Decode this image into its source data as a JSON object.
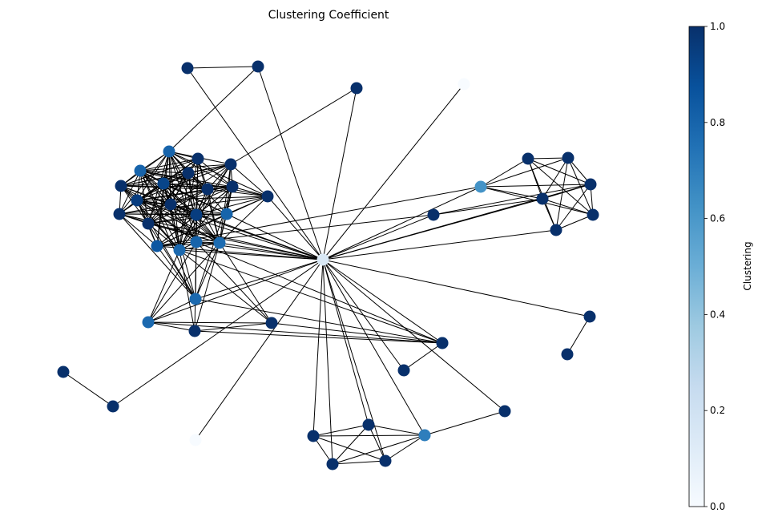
{
  "title": "Clustering Coefficient",
  "colorbar": {
    "label": "Clustering",
    "range": [
      0.0,
      1.0
    ],
    "ticks": [
      "0.0",
      "0.2",
      "0.4",
      "0.6",
      "0.8",
      "1.0"
    ],
    "tick_values": [
      0.0,
      0.2,
      0.4,
      0.6,
      0.8,
      1.0
    ],
    "colormap": "Blues",
    "colormap_stops": [
      "#f7fbff",
      "#deebf7",
      "#c6dbef",
      "#9ecae1",
      "#6baed6",
      "#4292c6",
      "#2171b5",
      "#08519c",
      "#08306b"
    ]
  },
  "edge_color": "#000000",
  "nodes": [
    {
      "id": "hub",
      "clustering": 0.15
    },
    {
      "id": "t1",
      "clustering": 1.0
    },
    {
      "id": "t2",
      "clustering": 1.0
    },
    {
      "id": "l1",
      "clustering": 1.0
    },
    {
      "id": "l2",
      "clustering": 0.0
    },
    {
      "id": "c1",
      "clustering": 0.8
    },
    {
      "id": "c2",
      "clustering": 1.0
    },
    {
      "id": "c3",
      "clustering": 0.8
    },
    {
      "id": "c4",
      "clustering": 1.0
    },
    {
      "id": "c5",
      "clustering": 1.0
    },
    {
      "id": "c6",
      "clustering": 0.92
    },
    {
      "id": "c7",
      "clustering": 1.0
    },
    {
      "id": "c8",
      "clustering": 1.0
    },
    {
      "id": "c9",
      "clustering": 1.0
    },
    {
      "id": "c10",
      "clustering": 1.0
    },
    {
      "id": "c11",
      "clustering": 0.95
    },
    {
      "id": "c12",
      "clustering": 1.0
    },
    {
      "id": "c13",
      "clustering": 1.0
    },
    {
      "id": "c14",
      "clustering": 0.95
    },
    {
      "id": "c15",
      "clustering": 0.8
    },
    {
      "id": "c16",
      "clustering": 1.0
    },
    {
      "id": "c17",
      "clustering": 0.85
    },
    {
      "id": "c18",
      "clustering": 0.78
    },
    {
      "id": "c19",
      "clustering": 0.8
    },
    {
      "id": "c20",
      "clustering": 0.77
    },
    {
      "id": "c21",
      "clustering": 0.78
    },
    {
      "id": "s1",
      "clustering": 0.78
    },
    {
      "id": "s2",
      "clustering": 1.0
    },
    {
      "id": "s3",
      "clustering": 1.0
    },
    {
      "id": "s4",
      "clustering": 0.68
    },
    {
      "id": "r1",
      "clustering": 0.62
    },
    {
      "id": "r2",
      "clustering": 1.0
    },
    {
      "id": "r3",
      "clustering": 1.0
    },
    {
      "id": "r4",
      "clustering": 1.0
    },
    {
      "id": "r5",
      "clustering": 1.0
    },
    {
      "id": "r6",
      "clustering": 1.0
    },
    {
      "id": "r7",
      "clustering": 1.0
    },
    {
      "id": "r8",
      "clustering": 1.0
    },
    {
      "id": "p1",
      "clustering": 1.0
    },
    {
      "id": "p2",
      "clustering": 1.0
    },
    {
      "id": "q1",
      "clustering": 1.0
    },
    {
      "id": "q2",
      "clustering": 1.0
    },
    {
      "id": "w1",
      "clustering": 1.0
    },
    {
      "id": "w2",
      "clustering": 1.0
    },
    {
      "id": "z1",
      "clustering": 0.0
    },
    {
      "id": "b1",
      "clustering": 1.0
    },
    {
      "id": "b2",
      "clustering": 1.0
    },
    {
      "id": "b3",
      "clustering": 1.0
    },
    {
      "id": "b4",
      "clustering": 1.0
    },
    {
      "id": "b5",
      "clustering": 0.7
    },
    {
      "id": "b6",
      "clustering": 1.0
    }
  ],
  "edges": [
    [
      "t1",
      "t2"
    ],
    [
      "t1",
      "hub"
    ],
    [
      "t2",
      "hub"
    ],
    [
      "t2",
      "c1"
    ],
    [
      "l1",
      "hub"
    ],
    [
      "l1",
      "c5"
    ],
    [
      "l2",
      "hub"
    ],
    [
      "c1",
      "c2"
    ],
    [
      "c1",
      "c3"
    ],
    [
      "c1",
      "c4"
    ],
    [
      "c1",
      "c5"
    ],
    [
      "c1",
      "c6"
    ],
    [
      "c1",
      "c7"
    ],
    [
      "c1",
      "c8"
    ],
    [
      "c1",
      "c9"
    ],
    [
      "c1",
      "c10"
    ],
    [
      "c1",
      "c11"
    ],
    [
      "c1",
      "c12"
    ],
    [
      "c1",
      "c13"
    ],
    [
      "c1",
      "c14"
    ],
    [
      "c1",
      "c15"
    ],
    [
      "c1",
      "c16"
    ],
    [
      "c1",
      "c17"
    ],
    [
      "c1",
      "c18"
    ],
    [
      "c1",
      "c19"
    ],
    [
      "c1",
      "c20"
    ],
    [
      "c2",
      "c3"
    ],
    [
      "c2",
      "c6"
    ],
    [
      "c2",
      "c7"
    ],
    [
      "c2",
      "c8"
    ],
    [
      "c2",
      "c9"
    ],
    [
      "c2",
      "c11"
    ],
    [
      "c2",
      "c12"
    ],
    [
      "c2",
      "c14"
    ],
    [
      "c2",
      "c16"
    ],
    [
      "c2",
      "c18"
    ],
    [
      "c2",
      "c19"
    ],
    [
      "c2",
      "c20"
    ],
    [
      "c3",
      "c4"
    ],
    [
      "c3",
      "c5"
    ],
    [
      "c3",
      "c6"
    ],
    [
      "c3",
      "c7"
    ],
    [
      "c3",
      "c8"
    ],
    [
      "c3",
      "c9"
    ],
    [
      "c3",
      "c10"
    ],
    [
      "c3",
      "c11"
    ],
    [
      "c3",
      "c12"
    ],
    [
      "c3",
      "c13"
    ],
    [
      "c3",
      "c14"
    ],
    [
      "c3",
      "c15"
    ],
    [
      "c3",
      "c16"
    ],
    [
      "c3",
      "c18"
    ],
    [
      "c3",
      "c19"
    ],
    [
      "c3",
      "c20"
    ],
    [
      "c3",
      "c21"
    ],
    [
      "c4",
      "c5"
    ],
    [
      "c4",
      "c6"
    ],
    [
      "c4",
      "c7"
    ],
    [
      "c4",
      "c8"
    ],
    [
      "c4",
      "c11"
    ],
    [
      "c4",
      "c12"
    ],
    [
      "c4",
      "c14"
    ],
    [
      "c4",
      "c16"
    ],
    [
      "c4",
      "c18"
    ],
    [
      "c4",
      "c19"
    ],
    [
      "c5",
      "c6"
    ],
    [
      "c5",
      "c7"
    ],
    [
      "c5",
      "c8"
    ],
    [
      "c5",
      "c9"
    ],
    [
      "c5",
      "c10"
    ],
    [
      "c5",
      "c11"
    ],
    [
      "c5",
      "c12"
    ],
    [
      "c5",
      "c14"
    ],
    [
      "c5",
      "c15"
    ],
    [
      "c5",
      "c18"
    ],
    [
      "c5",
      "c20"
    ],
    [
      "c6",
      "c7"
    ],
    [
      "c6",
      "c8"
    ],
    [
      "c6",
      "c9"
    ],
    [
      "c6",
      "c10"
    ],
    [
      "c6",
      "c11"
    ],
    [
      "c6",
      "c12"
    ],
    [
      "c6",
      "c13"
    ],
    [
      "c6",
      "c14"
    ],
    [
      "c6",
      "c15"
    ],
    [
      "c6",
      "c16"
    ],
    [
      "c6",
      "c17"
    ],
    [
      "c6",
      "c18"
    ],
    [
      "c6",
      "c19"
    ],
    [
      "c6",
      "c20"
    ],
    [
      "c6",
      "c21"
    ],
    [
      "c7",
      "c8"
    ],
    [
      "c7",
      "c9"
    ],
    [
      "c7",
      "c11"
    ],
    [
      "c7",
      "c12"
    ],
    [
      "c7",
      "c13"
    ],
    [
      "c7",
      "c14"
    ],
    [
      "c7",
      "c16"
    ],
    [
      "c7",
      "c18"
    ],
    [
      "c7",
      "c19"
    ],
    [
      "c7",
      "c20"
    ],
    [
      "c8",
      "c9"
    ],
    [
      "c8",
      "c11"
    ],
    [
      "c8",
      "c12"
    ],
    [
      "c8",
      "c14"
    ],
    [
      "c8",
      "c16"
    ],
    [
      "c8",
      "c18"
    ],
    [
      "c8",
      "c19"
    ],
    [
      "c8",
      "c20"
    ],
    [
      "c9",
      "c10"
    ],
    [
      "c9",
      "c11"
    ],
    [
      "c9",
      "c12"
    ],
    [
      "c9",
      "c14"
    ],
    [
      "c9",
      "c15"
    ],
    [
      "c9",
      "c16"
    ],
    [
      "c9",
      "c17"
    ],
    [
      "c9",
      "c18"
    ],
    [
      "c9",
      "c20"
    ],
    [
      "c9",
      "c21"
    ],
    [
      "c10",
      "c11"
    ],
    [
      "c10",
      "c13"
    ],
    [
      "c10",
      "c14"
    ],
    [
      "c10",
      "c15"
    ],
    [
      "c10",
      "c17"
    ],
    [
      "c10",
      "c20"
    ],
    [
      "c11",
      "c12"
    ],
    [
      "c11",
      "c13"
    ],
    [
      "c11",
      "c14"
    ],
    [
      "c11",
      "c15"
    ],
    [
      "c11",
      "c16"
    ],
    [
      "c11",
      "c17"
    ],
    [
      "c11",
      "c18"
    ],
    [
      "c11",
      "c19"
    ],
    [
      "c11",
      "c20"
    ],
    [
      "c11",
      "c21"
    ],
    [
      "c12",
      "c13"
    ],
    [
      "c12",
      "c14"
    ],
    [
      "c12",
      "c16"
    ],
    [
      "c12",
      "c18"
    ],
    [
      "c12",
      "c19"
    ],
    [
      "c12",
      "c20"
    ],
    [
      "c13",
      "c14"
    ],
    [
      "c13",
      "c15"
    ],
    [
      "c13",
      "c16"
    ],
    [
      "c13",
      "c17"
    ],
    [
      "c13",
      "c20"
    ],
    [
      "c13",
      "c21"
    ],
    [
      "c14",
      "c15"
    ],
    [
      "c14",
      "c16"
    ],
    [
      "c14",
      "c17"
    ],
    [
      "c14",
      "c18"
    ],
    [
      "c14",
      "c19"
    ],
    [
      "c14",
      "c20"
    ],
    [
      "c14",
      "c21"
    ],
    [
      "c15",
      "c16"
    ],
    [
      "c15",
      "c17"
    ],
    [
      "c15",
      "c20"
    ],
    [
      "c16",
      "c17"
    ],
    [
      "c16",
      "c18"
    ],
    [
      "c16",
      "c20"
    ],
    [
      "c16",
      "c21"
    ],
    [
      "c17",
      "c20"
    ],
    [
      "c17",
      "c21"
    ],
    [
      "c18",
      "c19"
    ],
    [
      "c18",
      "c20"
    ],
    [
      "c19",
      "c20"
    ],
    [
      "c19",
      "c21"
    ],
    [
      "c20",
      "c21"
    ],
    [
      "c7",
      "hub"
    ],
    [
      "c13",
      "hub"
    ],
    [
      "c11",
      "hub"
    ],
    [
      "c14",
      "hub"
    ],
    [
      "c15",
      "hub"
    ],
    [
      "c16",
      "hub"
    ],
    [
      "c17",
      "hub"
    ],
    [
      "c18",
      "hub"
    ],
    [
      "c19",
      "hub"
    ],
    [
      "c20",
      "hub"
    ],
    [
      "c21",
      "hub"
    ],
    [
      "c10",
      "hub"
    ],
    [
      "c17",
      "r1"
    ],
    [
      "c17",
      "r2"
    ],
    [
      "s1",
      "c18"
    ],
    [
      "s1",
      "c19"
    ],
    [
      "s1",
      "c20"
    ],
    [
      "s1",
      "c21"
    ],
    [
      "s1",
      "s2"
    ],
    [
      "s1",
      "s3"
    ],
    [
      "s1",
      "s4"
    ],
    [
      "s1",
      "hub"
    ],
    [
      "s2",
      "c18"
    ],
    [
      "s2",
      "c19"
    ],
    [
      "s2",
      "c20"
    ],
    [
      "s2",
      "s3"
    ],
    [
      "s2",
      "s4"
    ],
    [
      "s3",
      "c18"
    ],
    [
      "s3",
      "c19"
    ],
    [
      "s3",
      "c20"
    ],
    [
      "s3",
      "s4"
    ],
    [
      "s4",
      "c18"
    ],
    [
      "s4",
      "c19"
    ],
    [
      "s4",
      "c21"
    ],
    [
      "s4",
      "q1"
    ],
    [
      "s4",
      "hub"
    ],
    [
      "q1",
      "q2"
    ],
    [
      "q2",
      "hub"
    ],
    [
      "r1",
      "r3"
    ],
    [
      "r1",
      "r4"
    ],
    [
      "r1",
      "r5"
    ],
    [
      "r1",
      "r6"
    ],
    [
      "r1",
      "r7"
    ],
    [
      "r1",
      "hub"
    ],
    [
      "r2",
      "hub"
    ],
    [
      "r2",
      "r5"
    ],
    [
      "r2",
      "r6"
    ],
    [
      "r3",
      "r4"
    ],
    [
      "r3",
      "r5"
    ],
    [
      "r3",
      "r6"
    ],
    [
      "r3",
      "r7"
    ],
    [
      "r3",
      "r8"
    ],
    [
      "r4",
      "r5"
    ],
    [
      "r4",
      "r6"
    ],
    [
      "r4",
      "r7"
    ],
    [
      "r4",
      "r8"
    ],
    [
      "r5",
      "r6"
    ],
    [
      "r5",
      "r7"
    ],
    [
      "r5",
      "r8"
    ],
    [
      "r5",
      "hub"
    ],
    [
      "r6",
      "r7"
    ],
    [
      "r6",
      "r8"
    ],
    [
      "r6",
      "hub"
    ],
    [
      "r7",
      "r8"
    ],
    [
      "r8",
      "hub"
    ],
    [
      "p1",
      "p2"
    ],
    [
      "p1",
      "hub"
    ],
    [
      "w1",
      "w2"
    ],
    [
      "w2",
      "hub"
    ],
    [
      "z1",
      "hub"
    ],
    [
      "b1",
      "b2"
    ],
    [
      "b1",
      "b3"
    ],
    [
      "b1",
      "b4"
    ],
    [
      "b1",
      "b5"
    ],
    [
      "b1",
      "hub"
    ],
    [
      "b2",
      "b3"
    ],
    [
      "b2",
      "b4"
    ],
    [
      "b2",
      "b5"
    ],
    [
      "b2",
      "hub"
    ],
    [
      "b3",
      "b4"
    ],
    [
      "b3",
      "b5"
    ],
    [
      "b3",
      "hub"
    ],
    [
      "b4",
      "b5"
    ],
    [
      "b4",
      "hub"
    ],
    [
      "b5",
      "b6"
    ],
    [
      "b5",
      "hub"
    ],
    [
      "b6",
      "hub"
    ]
  ]
}
